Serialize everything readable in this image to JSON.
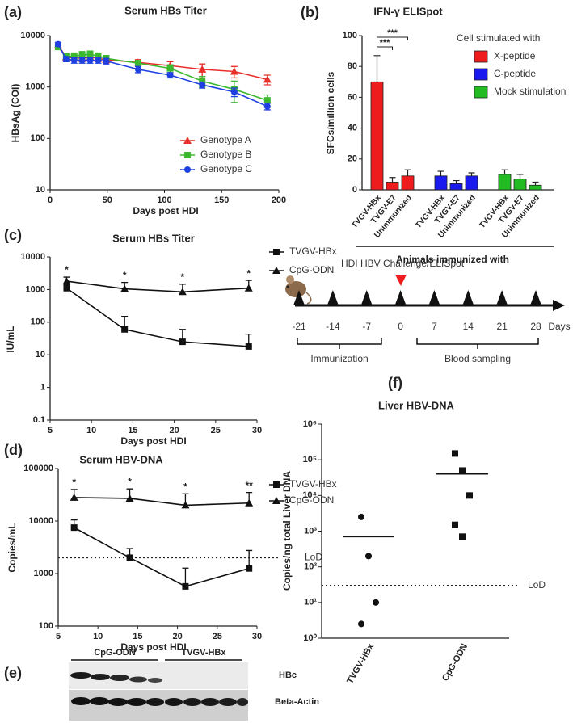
{
  "chart_data": [
    {
      "panel": "(a)",
      "type": "line",
      "title": "Serum HBs Titer",
      "xlabel": "Days post HDI",
      "ylabel": "HBsAg (COI)",
      "log_y": true,
      "x": [
        7,
        14,
        21,
        28,
        35,
        42,
        49,
        77,
        105,
        133,
        161,
        190
      ],
      "xlim": [
        0,
        200
      ],
      "xticks": [
        0,
        50,
        100,
        150,
        200
      ],
      "ylim": [
        10,
        10000
      ],
      "yticks": [
        10,
        100,
        1000,
        10000
      ],
      "error_bars": "both",
      "legend": "lower right",
      "series": [
        {
          "name": "Genotype A",
          "color": "#e8302a",
          "marker": "triangle",
          "values": [
            6500,
            3800,
            3700,
            3600,
            3800,
            3600,
            3400,
            3000,
            2600,
            2200,
            2000,
            1400
          ],
          "errors": [
            500,
            600,
            500,
            500,
            600,
            500,
            500,
            400,
            500,
            600,
            500,
            300
          ]
        },
        {
          "name": "Genotype B",
          "color": "#3cb82e",
          "marker": "square",
          "values": [
            6000,
            3900,
            4000,
            4200,
            4300,
            4000,
            3600,
            2900,
            2300,
            1300,
            900,
            550
          ],
          "errors": [
            500,
            500,
            600,
            700,
            700,
            600,
            500,
            400,
            400,
            300,
            400,
            150
          ]
        },
        {
          "name": "Genotype C",
          "color": "#1f3fe0",
          "marker": "circle",
          "values": [
            6800,
            3500,
            3300,
            3300,
            3300,
            3300,
            3200,
            2200,
            1700,
            1100,
            800,
            420
          ],
          "errors": [
            600,
            400,
            400,
            400,
            400,
            400,
            400,
            300,
            200,
            150,
            150,
            60
          ]
        }
      ]
    },
    {
      "panel": "(b)",
      "type": "bar",
      "title": "IFN-γ ELISpot",
      "ylabel": "SFCs/million cells",
      "xlabel": "Animals immunized with",
      "legend_title": "Cell stimulated with",
      "categories": [
        "TVGV-HBx",
        "TVGV-E7",
        "Unimmunized"
      ],
      "ylim": [
        0,
        100
      ],
      "yticks": [
        0,
        20,
        40,
        60,
        80,
        100
      ],
      "significance": [
        "***",
        "***"
      ],
      "series": [
        {
          "name": "X-peptide",
          "color": "#ee1c1c",
          "values": [
            70,
            5,
            9
          ],
          "errors": [
            17,
            3,
            4
          ]
        },
        {
          "name": "C-peptide",
          "color": "#1a1aee",
          "values": [
            9,
            4,
            9
          ],
          "errors": [
            3,
            2,
            2
          ]
        },
        {
          "name": "Mock stimulation",
          "color": "#22bb22",
          "values": [
            10,
            7,
            3
          ],
          "errors": [
            3,
            3,
            2
          ]
        }
      ]
    },
    {
      "panel": "(c)",
      "type": "line",
      "title": "Serum HBs Titer",
      "xlabel": "Days post HDI",
      "ylabel": "IU/mL",
      "log_y": true,
      "x": [
        7,
        14,
        21,
        29
      ],
      "xlim": [
        5,
        30
      ],
      "xticks": [
        5,
        10,
        15,
        20,
        25,
        30
      ],
      "ylim": [
        0.1,
        10000
      ],
      "yticks": [
        0.1,
        1,
        10,
        100,
        1000,
        10000
      ],
      "error_bars": "upper",
      "legend": "right",
      "annotations": [
        "*",
        "*",
        "*",
        "*"
      ],
      "series": [
        {
          "name": "TVGV-HBx",
          "color": "#111111",
          "marker": "square",
          "values": [
            1100,
            60,
            25,
            18
          ],
          "errors": [
            300,
            90,
            35,
            25
          ]
        },
        {
          "name": "CpG-ODN",
          "color": "#111111",
          "marker": "triangle",
          "values": [
            1800,
            1050,
            850,
            1100
          ],
          "errors": [
            600,
            600,
            600,
            800
          ]
        }
      ]
    },
    {
      "panel": "(d)",
      "type": "line",
      "title": "Serum HBV-DNA",
      "xlabel": "Days post HDI",
      "ylabel": "Copies/mL",
      "log_y": true,
      "x": [
        7,
        14,
        21,
        29
      ],
      "xlim": [
        5,
        30
      ],
      "xticks": [
        5,
        10,
        15,
        20,
        25,
        30
      ],
      "ylim": [
        100,
        100000
      ],
      "yticks": [
        100,
        1000,
        10000,
        100000
      ],
      "error_bars": "upper",
      "legend": "right",
      "annotations": [
        "*",
        "*",
        "*",
        "**"
      ],
      "lod": {
        "value": 2000,
        "label": "LoD"
      },
      "series": [
        {
          "name": "TVGV-HBx",
          "color": "#111111",
          "marker": "square",
          "values": [
            7500,
            2000,
            570,
            1250
          ],
          "errors": [
            3000,
            1000,
            700,
            1500
          ]
        },
        {
          "name": "CpG-ODN",
          "color": "#111111",
          "marker": "triangle",
          "values": [
            28000,
            27000,
            20000,
            22000
          ],
          "errors": [
            12000,
            14000,
            13000,
            13000
          ]
        }
      ]
    },
    {
      "panel": "(f)",
      "type": "scatter",
      "title": "Liver HBV-DNA",
      "ylabel": "Copies/ng total Liver DNA",
      "log_y": true,
      "categories": [
        "TVGV-HBx",
        "CpG-ODN"
      ],
      "markers": [
        "circle",
        "square"
      ],
      "points": [
        [
          2500,
          200,
          10,
          2.5
        ],
        [
          150000,
          50000,
          10000,
          1500,
          700
        ]
      ],
      "means": [
        700,
        40000
      ],
      "ylim": [
        1,
        1000000
      ],
      "yticks": [
        {
          "value": 1,
          "label": "10⁰"
        },
        {
          "value": 10,
          "label": "10¹"
        },
        {
          "value": 100,
          "label": "10²"
        },
        {
          "value": 1000,
          "label": "10³"
        },
        {
          "value": 10000,
          "label": "10⁴"
        },
        {
          "value": 100000,
          "label": "10⁵"
        },
        {
          "value": 1000000,
          "label": "10⁶"
        }
      ],
      "lod": {
        "value": 30,
        "label": "LoD"
      }
    }
  ],
  "timeline": {
    "title": "HDI HBV Challenge/ELISpot",
    "points": [
      -21,
      -14,
      -7,
      0,
      7,
      14,
      21,
      28
    ],
    "unit": "Days",
    "brackets": [
      "Immunization",
      "Blood sampling"
    ]
  },
  "blot": {
    "panel": "(e)",
    "groups": [
      "CpG-ODN",
      "TVGV-HBx"
    ],
    "bands": [
      "HBc",
      "Beta-Actin"
    ]
  }
}
